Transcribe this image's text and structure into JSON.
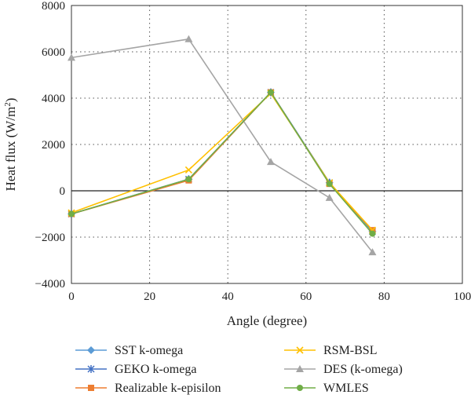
{
  "chart_data": {
    "type": "line",
    "xlabel": "Angle (degree)",
    "ylabel_main": "Heat flux (W/m",
    "ylabel_sup": "2",
    "ylabel_close": ")",
    "xlim": [
      0,
      100
    ],
    "ylim": [
      -4000,
      8000
    ],
    "xticks": [
      0,
      20,
      40,
      60,
      80,
      100
    ],
    "yticks": [
      -4000,
      -2000,
      0,
      2000,
      4000,
      6000,
      8000
    ],
    "xtick_labels": [
      "0",
      "20",
      "40",
      "60",
      "80",
      "100"
    ],
    "ytick_labels": [
      "−4000",
      "−2000",
      "0",
      "2000",
      "4000",
      "6000",
      "8000"
    ],
    "grid": "dotted",
    "legend_position": "bottom",
    "x": [
      0,
      30,
      51,
      66,
      77
    ],
    "series": [
      {
        "name": "SST k-omega",
        "marker": "diamond",
        "color": "#5b9bd5",
        "values": [
          -1000,
          500,
          4250,
          350,
          -1750
        ]
      },
      {
        "name": "GEKO k-omega",
        "marker": "star",
        "color": "#4472c4",
        "values": [
          -1000,
          500,
          4250,
          350,
          -1750
        ]
      },
      {
        "name": "Realizable k-episilon",
        "marker": "square",
        "color": "#ed7d31",
        "values": [
          -1000,
          450,
          4250,
          300,
          -1700
        ]
      },
      {
        "name": "RSM-BSL",
        "marker": "x",
        "color": "#ffc000",
        "values": [
          -950,
          900,
          4200,
          350,
          -1700
        ]
      },
      {
        "name": "DES (k-omega)",
        "marker": "triangle",
        "color": "#a5a5a5",
        "values": [
          5750,
          6550,
          1250,
          -300,
          -2650
        ]
      },
      {
        "name": "WMLES",
        "marker": "circle",
        "color": "#70ad47",
        "values": [
          -1000,
          500,
          4250,
          300,
          -1850
        ]
      }
    ]
  }
}
